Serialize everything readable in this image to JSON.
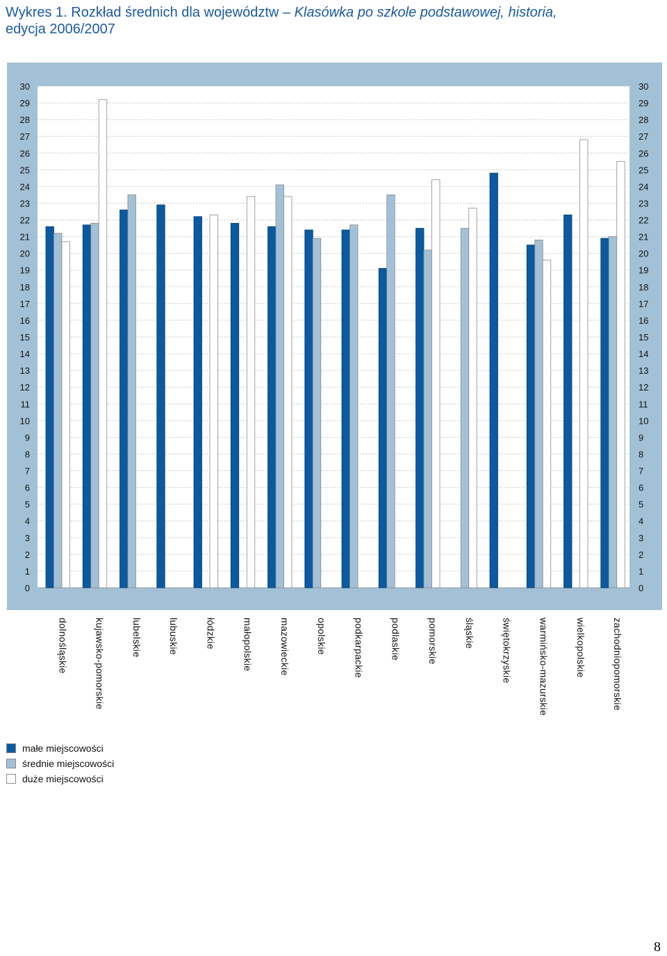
{
  "title": {
    "prefix": "Wykres 1.",
    "main": " Rozkład średnich dla województw – ",
    "italic": "Klasówka po szkole podstawowej, historia,",
    "line2": "edycja 2006/2007"
  },
  "chart_data": {
    "type": "bar",
    "categories": [
      "dolnośląskie",
      "kujawsko-pomorskie",
      "lubelskie",
      "lubuskie",
      "łódzkie",
      "małopolskie",
      "mazowieckie",
      "opolskie",
      "podkarpackie",
      "podlaskie",
      "pomorskie",
      "śląskie",
      "świętokrzyskie",
      "warmińsko-mazurskie",
      "wielkopolskie",
      "zachodniopomorskie"
    ],
    "series": [
      {
        "name": "małe miejscowości",
        "color": "#0b5aa0",
        "values": [
          21.6,
          21.7,
          22.6,
          22.9,
          22.2,
          21.8,
          21.6,
          21.4,
          21.4,
          19.1,
          21.5,
          null,
          24.8,
          20.5,
          22.3,
          20.9
        ]
      },
      {
        "name": "średnie miejscowości",
        "color": "#a3c1d6",
        "values": [
          21.2,
          21.8,
          23.5,
          null,
          null,
          null,
          24.1,
          20.9,
          21.7,
          23.5,
          20.2,
          21.5,
          null,
          20.8,
          null,
          21.0
        ]
      },
      {
        "name": "duże miejscowości",
        "color": "#ffffff",
        "values": [
          20.7,
          29.2,
          null,
          null,
          22.3,
          23.4,
          23.4,
          null,
          null,
          null,
          24.4,
          22.7,
          null,
          19.6,
          26.8,
          25.5
        ]
      }
    ],
    "ylim": [
      0,
      30
    ],
    "yticks": [
      0,
      1,
      2,
      3,
      4,
      5,
      6,
      7,
      8,
      9,
      10,
      11,
      12,
      13,
      14,
      15,
      16,
      17,
      18,
      19,
      20,
      21,
      22,
      23,
      24,
      25,
      26,
      27,
      28,
      29,
      30
    ],
    "grid": true,
    "legend": "bottom-left",
    "frame_color": "#a3c1d6"
  },
  "page_number": "8"
}
